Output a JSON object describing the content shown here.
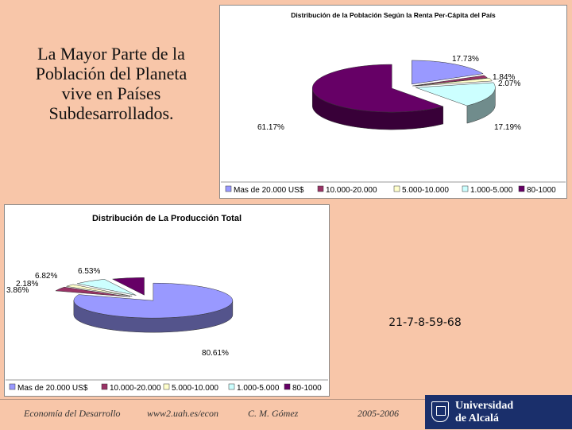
{
  "heading": {
    "line1": "La Mayor Parte de la",
    "line2": "Población del Planeta",
    "line3": "vive en Países",
    "line4": "Subdesarrollados."
  },
  "code": "21-7-8-59-68",
  "footer": {
    "course": "Economía del Desarrollo",
    "url": "www2.uah.es/econ",
    "author": "C. M. Gómez",
    "years": "2005-2006"
  },
  "logo": {
    "line1": "Universidad",
    "line2": "de Alcalá"
  },
  "colors": {
    "c1": "#9999ff",
    "c2": "#993366",
    "c3": "#ffffcc",
    "c4": "#ccffff",
    "c5": "#660066"
  },
  "chart_data": [
    {
      "type": "pie",
      "title": "Distribución de la Población Según la Renta Per-Cápita del País",
      "categories": [
        "Mas de 20.000 US$",
        "10.000-20.000",
        "5.000-10.000",
        "1.000-5.000",
        "80-1000"
      ],
      "values": [
        17.73,
        1.84,
        2.07,
        17.19,
        61.17
      ],
      "labels": [
        "17.73%",
        "1.84%",
        "2.07%",
        "17.19%",
        "61.17%"
      ],
      "legend": "bottom",
      "style": "3d-exploded"
    },
    {
      "type": "pie",
      "title": "Distribución de La Producción Total",
      "categories": [
        "Mas de 20.000 US$",
        "10.000-20.000",
        "5.000-10.000",
        "1.000-5.000",
        "80-1000"
      ],
      "values": [
        80.61,
        3.86,
        2.18,
        6.82,
        6.53
      ],
      "labels": [
        "80.61%",
        "3.86%",
        "2.18%",
        "6.82%",
        "6.53%"
      ],
      "legend": "bottom",
      "style": "3d-exploded"
    }
  ]
}
